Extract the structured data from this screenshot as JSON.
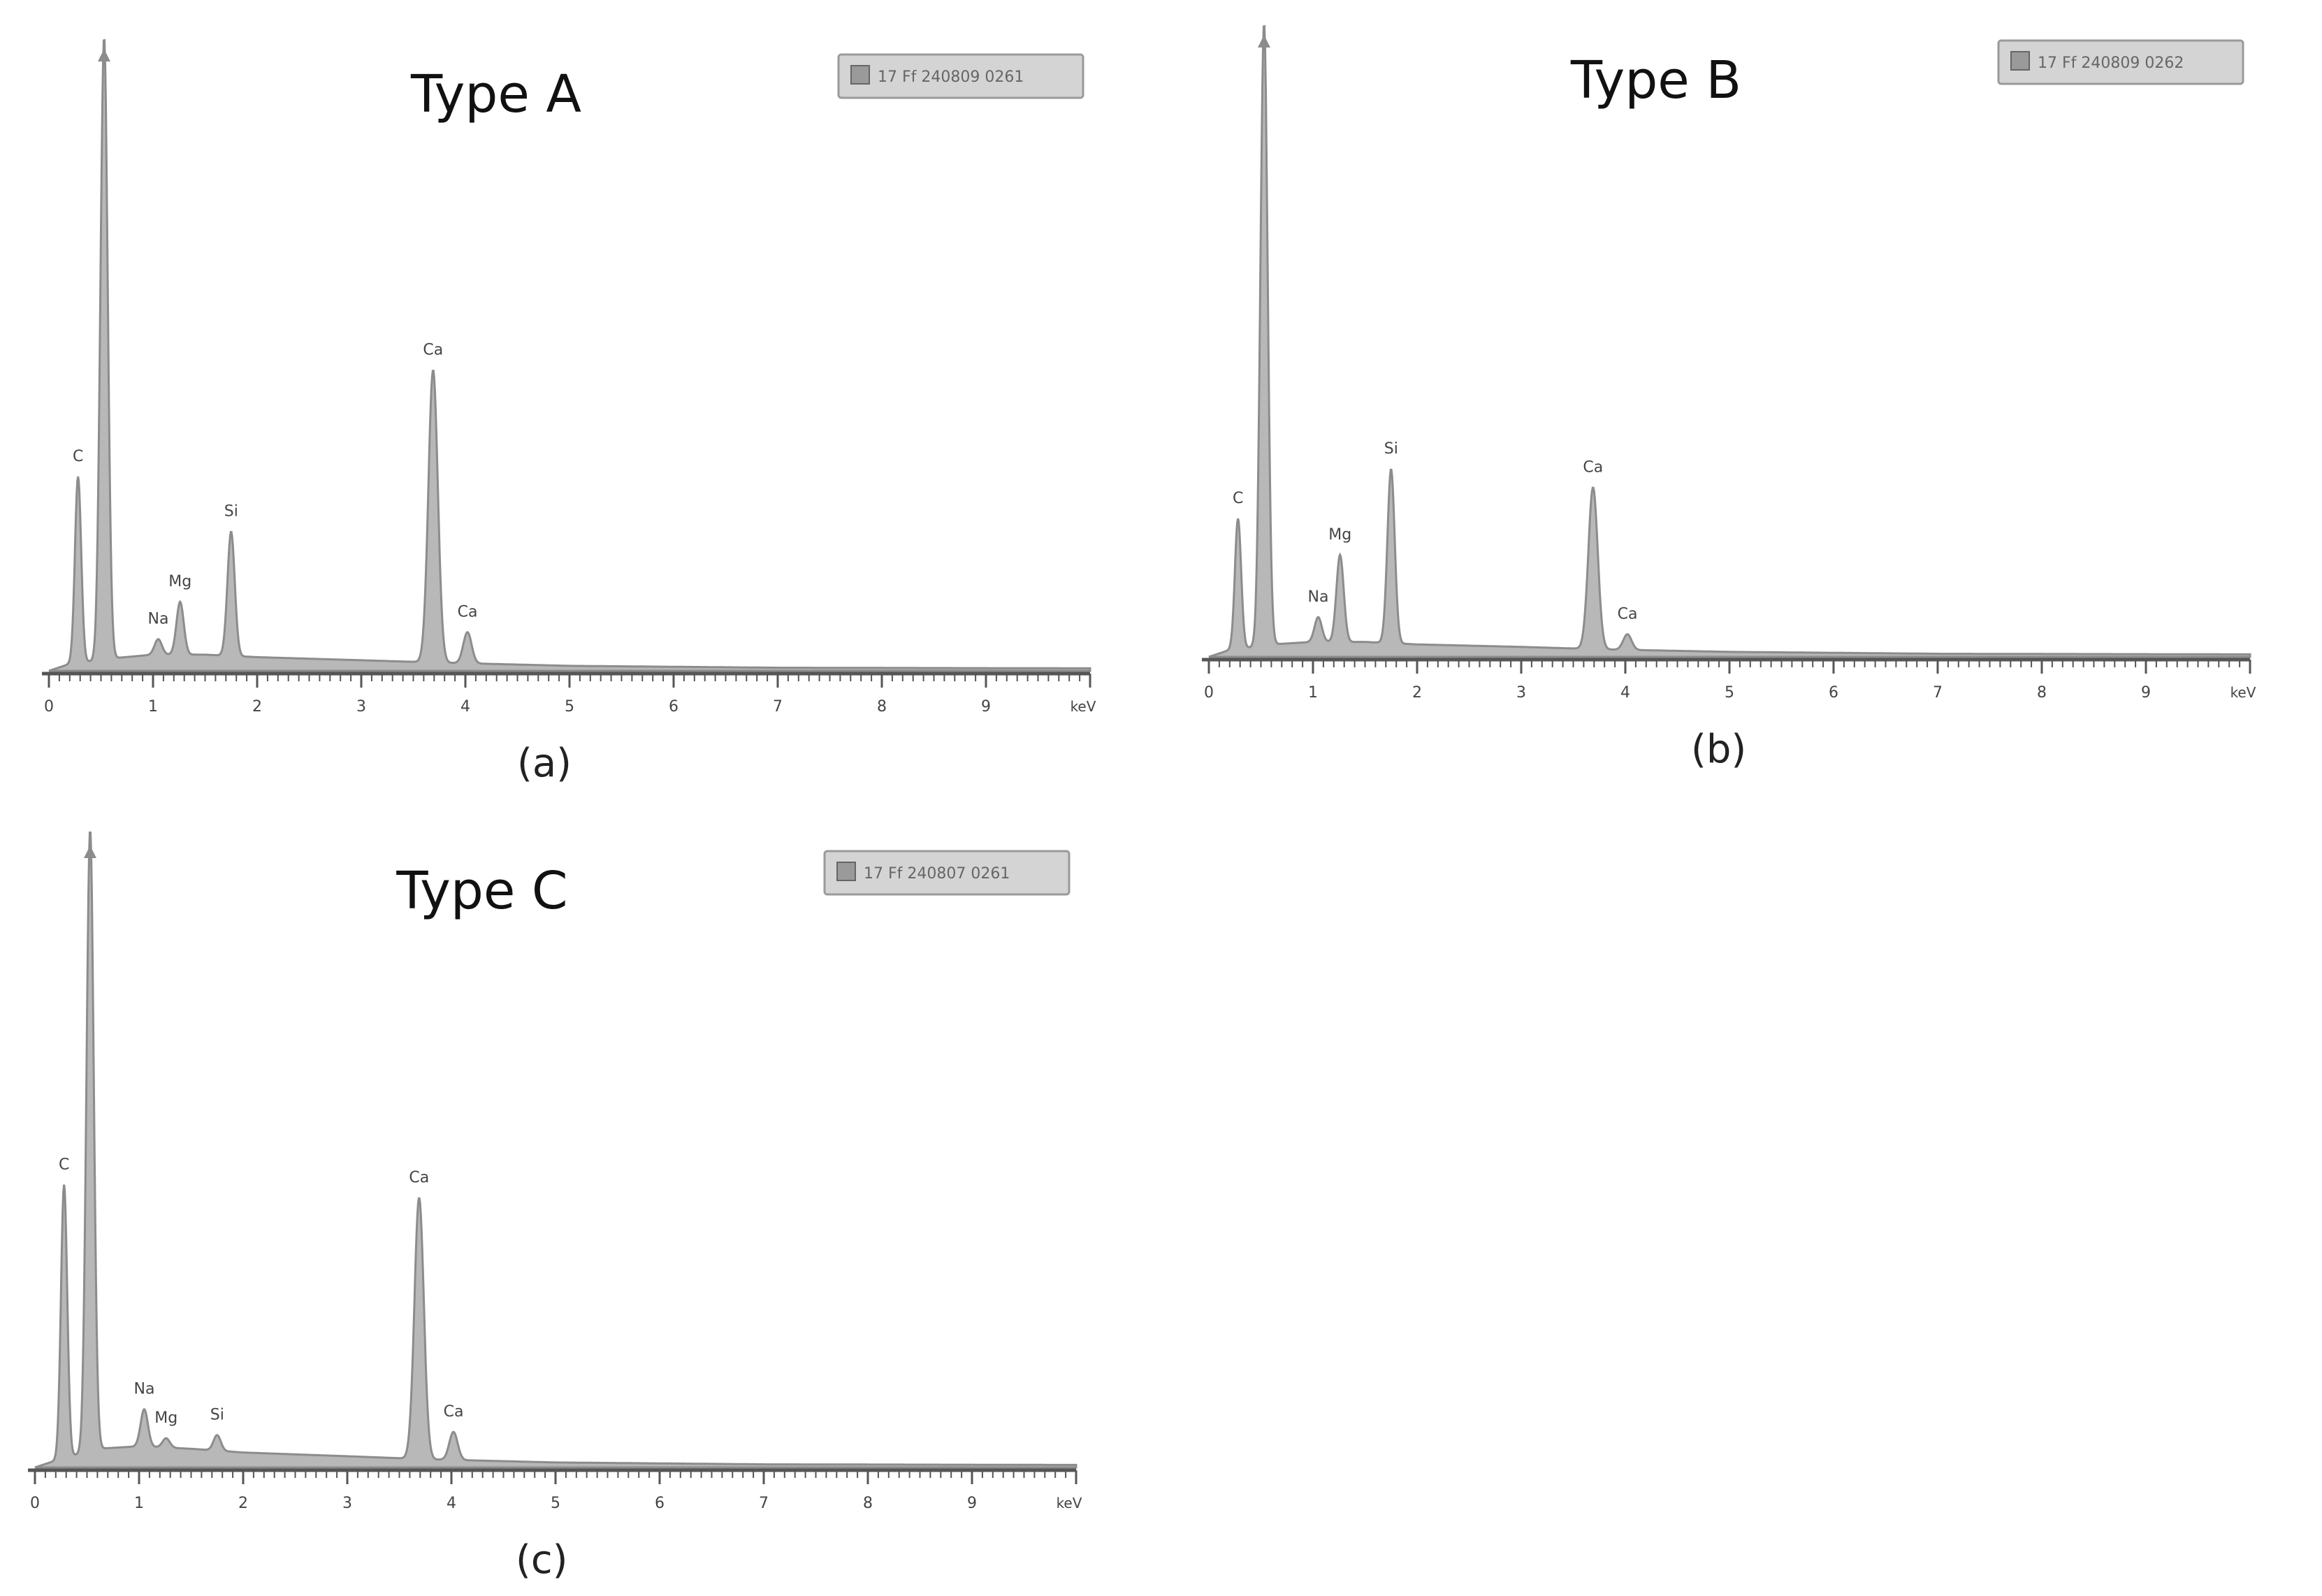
{
  "colors": {
    "spectrum_fill": "#b8b8b8",
    "spectrum_stroke": "#8c8c8c",
    "axis": "#555555",
    "label_text": "#444444",
    "title_text": "#111111",
    "legend_bg": "#d4d4d4",
    "legend_border": "#9a9a9a"
  },
  "chart_data": [
    {
      "type": "area",
      "panel_label": "(a)",
      "title": "Type A",
      "legend_text": "17 Ff 240809 0261",
      "xunit": "keV",
      "xlim": [
        0,
        10
      ],
      "ylim": [
        0,
        100
      ],
      "xticks": [
        "0",
        "1",
        "2",
        "3",
        "4",
        "5",
        "6",
        "7",
        "8",
        "9"
      ],
      "background": [
        [
          0,
          0
        ],
        [
          0.18,
          1
        ],
        [
          0.6,
          2
        ],
        [
          1.0,
          2.6
        ],
        [
          1.5,
          2.6
        ],
        [
          2.0,
          2.2
        ],
        [
          3.0,
          1.7
        ],
        [
          3.8,
          1.3
        ],
        [
          5.0,
          0.8
        ],
        [
          7.0,
          0.5
        ],
        [
          10.0,
          0.4
        ]
      ],
      "peaks": [
        {
          "label": "C",
          "x": 0.28,
          "height": 30,
          "width": 0.03
        },
        {
          "label": "",
          "x": 0.53,
          "height": 100,
          "width": 0.035
        },
        {
          "label": "Na",
          "x": 1.05,
          "height": 2.5,
          "width": 0.035
        },
        {
          "label": "Mg",
          "x": 1.26,
          "height": 8.5,
          "width": 0.035
        },
        {
          "label": "Si",
          "x": 1.75,
          "height": 20,
          "width": 0.035
        },
        {
          "label": "Ca",
          "x": 3.69,
          "height": 47,
          "width": 0.045
        },
        {
          "label": "Ca",
          "x": 4.02,
          "height": 5,
          "width": 0.04
        }
      ]
    },
    {
      "type": "area",
      "panel_label": "(b)",
      "title": "Type B",
      "legend_text": "17 Ff 240809 0262",
      "xunit": "keV",
      "xlim": [
        0,
        10
      ],
      "ylim": [
        0,
        100
      ],
      "xticks": [
        "0",
        "1",
        "2",
        "3",
        "4",
        "5",
        "6",
        "7",
        "8",
        "9"
      ],
      "background": [
        [
          0,
          0
        ],
        [
          0.18,
          1
        ],
        [
          0.6,
          2
        ],
        [
          1.0,
          2.4
        ],
        [
          1.5,
          2.4
        ],
        [
          2.0,
          2.0
        ],
        [
          3.0,
          1.6
        ],
        [
          3.8,
          1.2
        ],
        [
          5.0,
          0.8
        ],
        [
          7.0,
          0.5
        ],
        [
          10.0,
          0.4
        ]
      ],
      "peaks": [
        {
          "label": "C",
          "x": 0.28,
          "height": 21,
          "width": 0.03
        },
        {
          "label": "",
          "x": 0.53,
          "height": 100,
          "width": 0.035
        },
        {
          "label": "Na",
          "x": 1.05,
          "height": 4,
          "width": 0.035
        },
        {
          "label": "Mg",
          "x": 1.26,
          "height": 14,
          "width": 0.035
        },
        {
          "label": "Si",
          "x": 1.75,
          "height": 28,
          "width": 0.035
        },
        {
          "label": "Ca",
          "x": 3.69,
          "height": 26,
          "width": 0.045
        },
        {
          "label": "Ca",
          "x": 4.02,
          "height": 2.5,
          "width": 0.04
        }
      ]
    },
    {
      "type": "area",
      "panel_label": "(c)",
      "title": "Type C",
      "legend_text": "17 Ff 240807 0261",
      "xunit": "keV",
      "xlim": [
        0,
        10
      ],
      "ylim": [
        0,
        100
      ],
      "xticks": [
        "0",
        "1",
        "2",
        "3",
        "4",
        "5",
        "6",
        "7",
        "8",
        "9"
      ],
      "background": [
        [
          0,
          0
        ],
        [
          0.18,
          1
        ],
        [
          0.6,
          3
        ],
        [
          1.0,
          3.4
        ],
        [
          1.5,
          3.0
        ],
        [
          2.0,
          2.4
        ],
        [
          3.0,
          1.8
        ],
        [
          3.8,
          1.3
        ],
        [
          5.0,
          0.8
        ],
        [
          7.0,
          0.5
        ],
        [
          10.0,
          0.4
        ]
      ],
      "peaks": [
        {
          "label": "C",
          "x": 0.28,
          "height": 44,
          "width": 0.03
        },
        {
          "label": "",
          "x": 0.53,
          "height": 100,
          "width": 0.035
        },
        {
          "label": "Na",
          "x": 1.05,
          "height": 6,
          "width": 0.035
        },
        {
          "label": "Mg",
          "x": 1.26,
          "height": 1.5,
          "width": 0.035
        },
        {
          "label": "Si",
          "x": 1.75,
          "height": 2.5,
          "width": 0.035
        },
        {
          "label": "Ca",
          "x": 3.69,
          "height": 42,
          "width": 0.045
        },
        {
          "label": "Ca",
          "x": 4.02,
          "height": 4.5,
          "width": 0.04
        }
      ]
    }
  ]
}
